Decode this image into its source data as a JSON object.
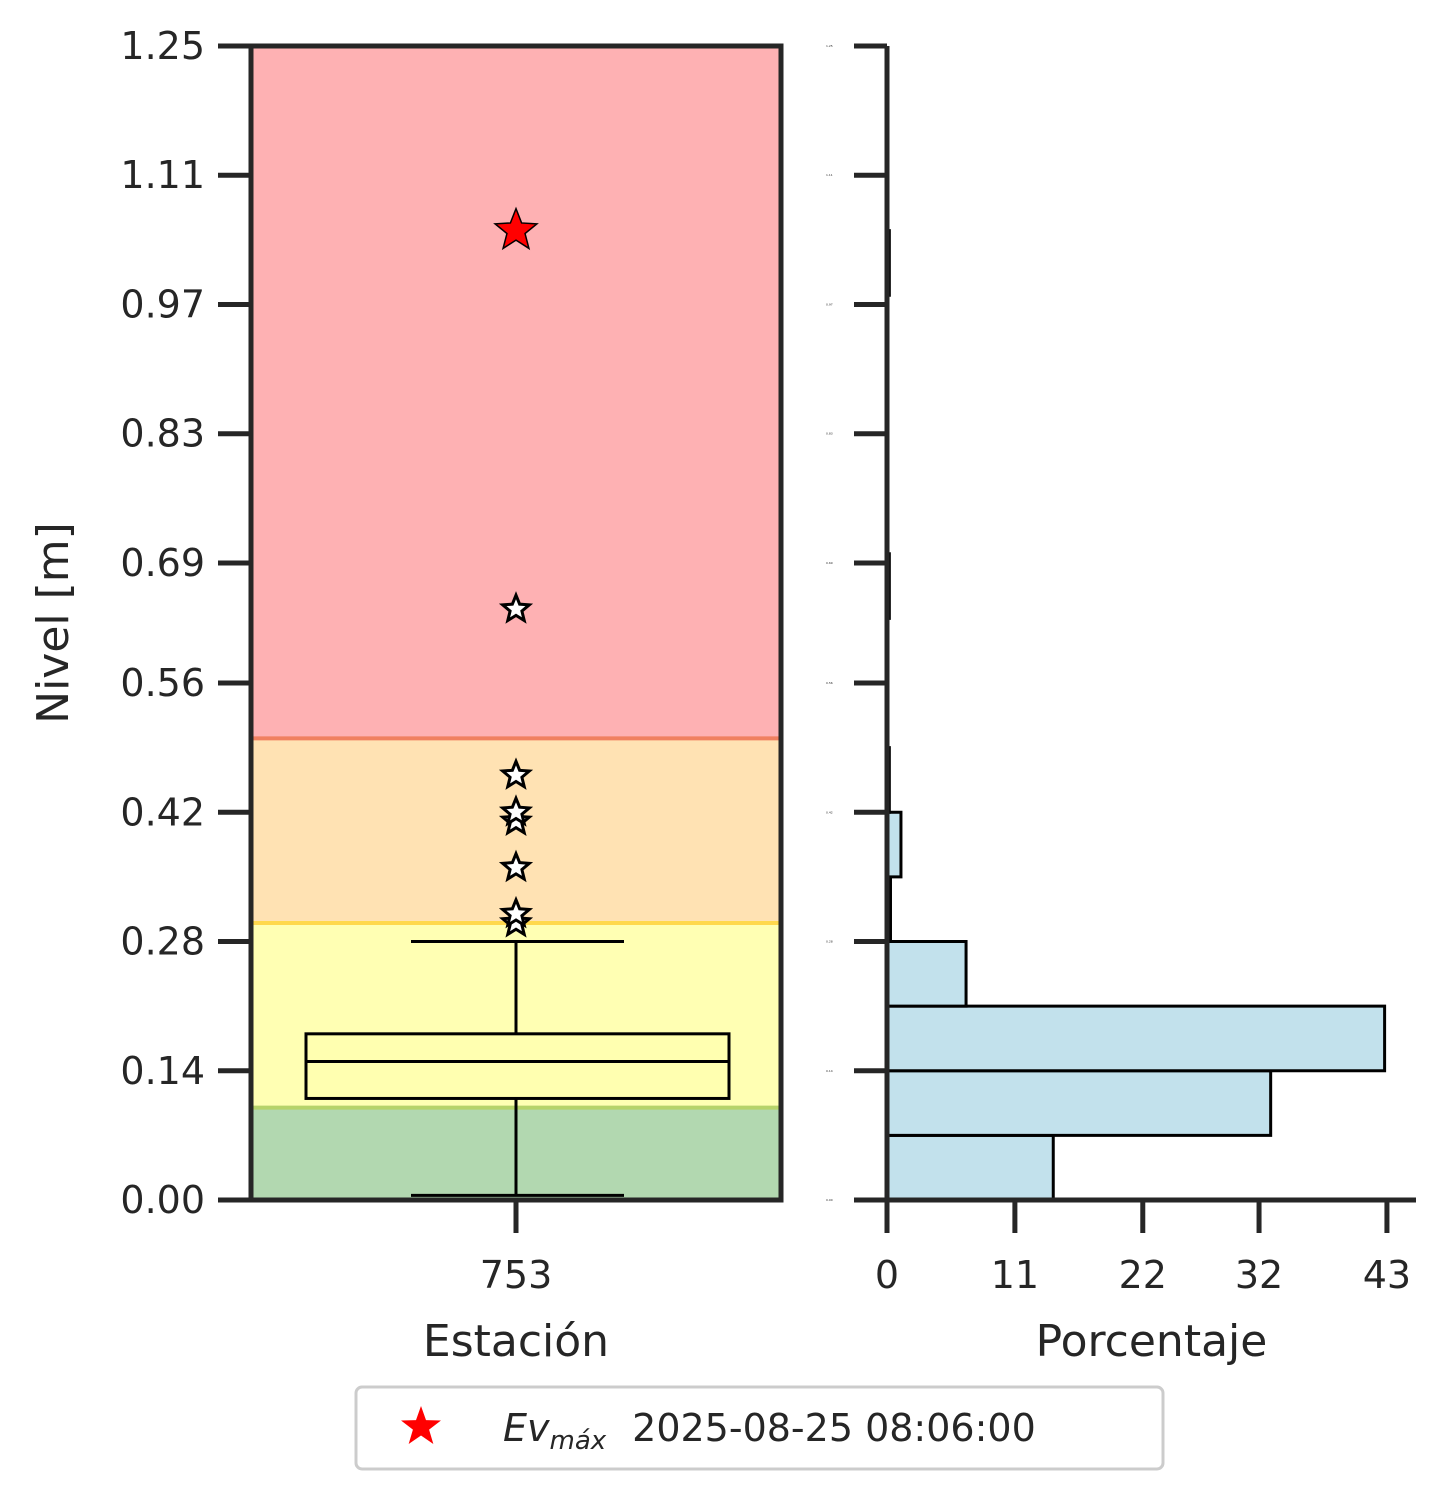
{
  "chart_data": [
    {
      "type": "box",
      "xlabel": "Estación",
      "ylabel": "Nivel [m]",
      "categories": [
        "753"
      ],
      "ylim": [
        0.0,
        1.25
      ],
      "yticks": [
        "0.00",
        "0.14",
        "0.28",
        "0.42",
        "0.56",
        "0.69",
        "0.83",
        "0.97",
        "1.11",
        "1.25"
      ],
      "bands": [
        {
          "from": 0.0,
          "to": 0.1,
          "color": "#b2d8b0"
        },
        {
          "from": 0.1,
          "to": 0.3,
          "color": "#ffffb3"
        },
        {
          "from": 0.3,
          "to": 0.5,
          "color": "#ffe2b3"
        },
        {
          "from": 0.5,
          "to": 1.25,
          "color": "#feb1b3"
        }
      ],
      "box": {
        "whisker_low": 0.005,
        "q1": 0.11,
        "median": 0.15,
        "q3": 0.18,
        "whisker_high": 0.28
      },
      "outliers": [
        0.3,
        0.31,
        0.36,
        0.41,
        0.42,
        0.46,
        0.64
      ],
      "max_event": {
        "value": 1.05,
        "color": "#ff0000"
      },
      "grid": false
    },
    {
      "type": "histogram",
      "orientation": "horizontal",
      "xlabel": "Porcentaje",
      "xticks": [
        "0",
        "11",
        "22",
        "32",
        "43"
      ],
      "xlim": [
        0,
        45.5
      ],
      "ylim": [
        0.0,
        1.25
      ],
      "bar_color": "#c2e1ec",
      "bins": [
        {
          "from": 0.0,
          "to": 0.07,
          "percent": 14.3
        },
        {
          "from": 0.07,
          "to": 0.14,
          "percent": 33.0
        },
        {
          "from": 0.14,
          "to": 0.21,
          "percent": 42.8
        },
        {
          "from": 0.21,
          "to": 0.28,
          "percent": 6.8
        },
        {
          "from": 0.28,
          "to": 0.35,
          "percent": 0.3
        },
        {
          "from": 0.35,
          "to": 0.42,
          "percent": 1.2
        },
        {
          "from": 0.42,
          "to": 0.49,
          "percent": 0.2
        },
        {
          "from": 0.63,
          "to": 0.7,
          "percent": 0.2
        },
        {
          "from": 0.98,
          "to": 1.05,
          "percent": 0.2
        }
      ],
      "grid": false
    }
  ],
  "legend": {
    "position": "bottom-center",
    "marker": "star",
    "marker_color": "#ff0000",
    "label_italic": "Ev",
    "label_sub": "máx",
    "label_date": "2025-08-25 08:06:00"
  }
}
